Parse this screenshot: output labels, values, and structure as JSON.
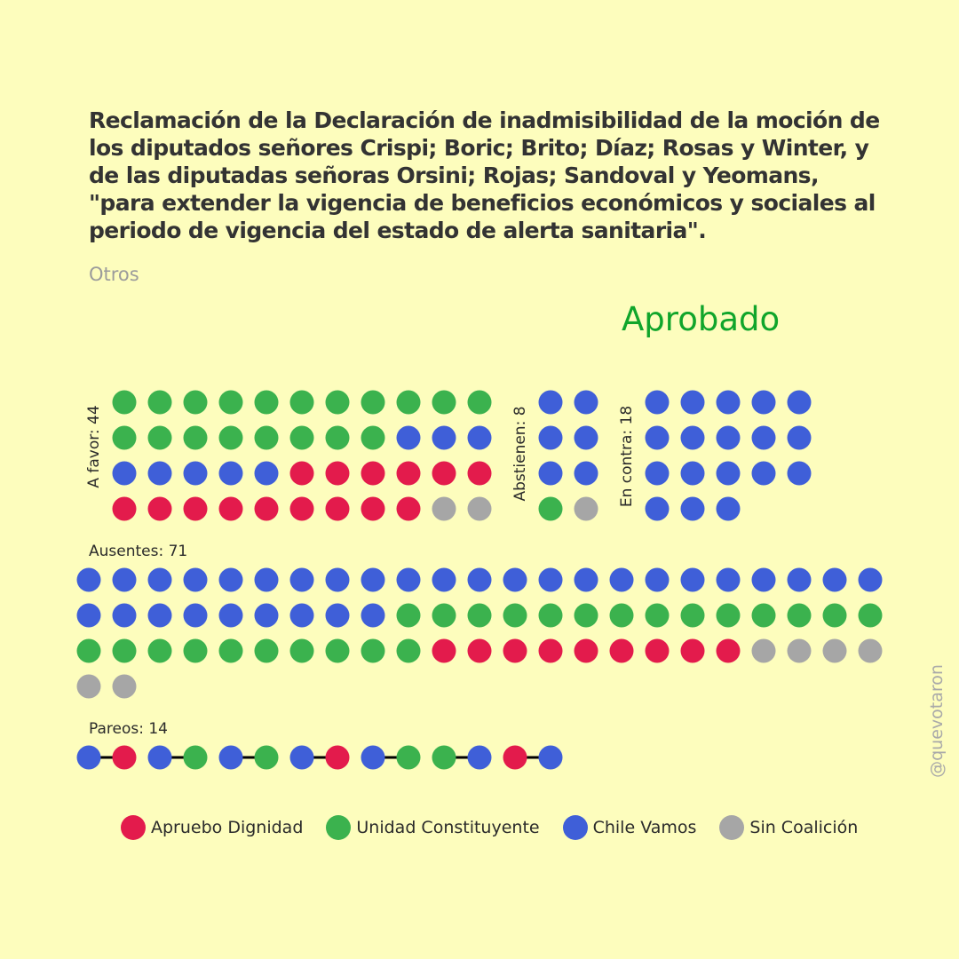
{
  "title": "Reclamación de la Declaración de inadmisibilidad de la moción de los diputados señores Crispi; Boric; Brito; Díaz; Rosas y Winter, y de las diputadas señoras Orsini; Rojas; Sandoval y Yeomans, \"para extender la vigencia de beneficios económicos y sociales al periodo de vigencia del estado de alerta sanitaria\".",
  "category": "Otros",
  "result": "Aprobado",
  "watermark": "@quevotaron",
  "colors": {
    "background": "#fdfdbd",
    "result": "#10a52b",
    "AD": "#e31b4c",
    "UC": "#3bb24e",
    "CV": "#3f5fd8",
    "SC": "#a6a6a6"
  },
  "legend": [
    {
      "key": "AD",
      "label": "Apruebo Dignidad"
    },
    {
      "key": "UC",
      "label": "Unidad Constituyente"
    },
    {
      "key": "CV",
      "label": "Chile Vamos"
    },
    {
      "key": "SC",
      "label": "Sin Coalición"
    }
  ],
  "chart_data": {
    "type": "dot-matrix",
    "groups": [
      {
        "key": "favor",
        "label": "A favor: 44",
        "count": 44,
        "seats": [
          "UC",
          "UC",
          "UC",
          "UC",
          "UC",
          "UC",
          "UC",
          "UC",
          "UC",
          "UC",
          "UC",
          "UC",
          "UC",
          "UC",
          "UC",
          "UC",
          "UC",
          "UC",
          "UC",
          "CV",
          "CV",
          "CV",
          "CV",
          "CV",
          "CV",
          "CV",
          "CV",
          "AD",
          "AD",
          "AD",
          "AD",
          "AD",
          "AD",
          "AD",
          "AD",
          "AD",
          "AD",
          "AD",
          "AD",
          "AD",
          "AD",
          "AD",
          "SC",
          "SC"
        ]
      },
      {
        "key": "abstienen",
        "label": "Abstienen: 8",
        "count": 8,
        "seats": [
          "CV",
          "CV",
          "CV",
          "CV",
          "CV",
          "CV",
          "UC",
          "SC"
        ]
      },
      {
        "key": "contra",
        "label": "En contra: 18",
        "count": 18,
        "seats": [
          "CV",
          "CV",
          "CV",
          "CV",
          "CV",
          "CV",
          "CV",
          "CV",
          "CV",
          "CV",
          "CV",
          "CV",
          "CV",
          "CV",
          "CV",
          "CV",
          "CV",
          "CV"
        ]
      },
      {
        "key": "ausentes",
        "label": "Ausentes: 71",
        "count": 71,
        "seats": [
          "CV",
          "CV",
          "CV",
          "CV",
          "CV",
          "CV",
          "CV",
          "CV",
          "CV",
          "CV",
          "CV",
          "CV",
          "CV",
          "CV",
          "CV",
          "CV",
          "CV",
          "CV",
          "CV",
          "CV",
          "CV",
          "CV",
          "CV",
          "CV",
          "CV",
          "CV",
          "CV",
          "CV",
          "CV",
          "CV",
          "CV",
          "CV",
          "UC",
          "UC",
          "UC",
          "UC",
          "UC",
          "UC",
          "UC",
          "UC",
          "UC",
          "UC",
          "UC",
          "UC",
          "UC",
          "UC",
          "UC",
          "UC",
          "UC",
          "UC",
          "UC",
          "UC",
          "UC",
          "UC",
          "UC",
          "UC",
          "AD",
          "AD",
          "AD",
          "AD",
          "AD",
          "AD",
          "AD",
          "AD",
          "AD",
          "SC",
          "SC",
          "SC",
          "SC",
          "SC",
          "SC"
        ]
      },
      {
        "key": "pareos",
        "label": "Pareos: 14",
        "count": 14,
        "pairs": [
          [
            "CV",
            "AD"
          ],
          [
            "CV",
            "UC"
          ],
          [
            "CV",
            "UC"
          ],
          [
            "CV",
            "AD"
          ],
          [
            "CV",
            "UC"
          ],
          [
            "UC",
            "CV"
          ],
          [
            "AD",
            "CV"
          ]
        ]
      }
    ]
  }
}
